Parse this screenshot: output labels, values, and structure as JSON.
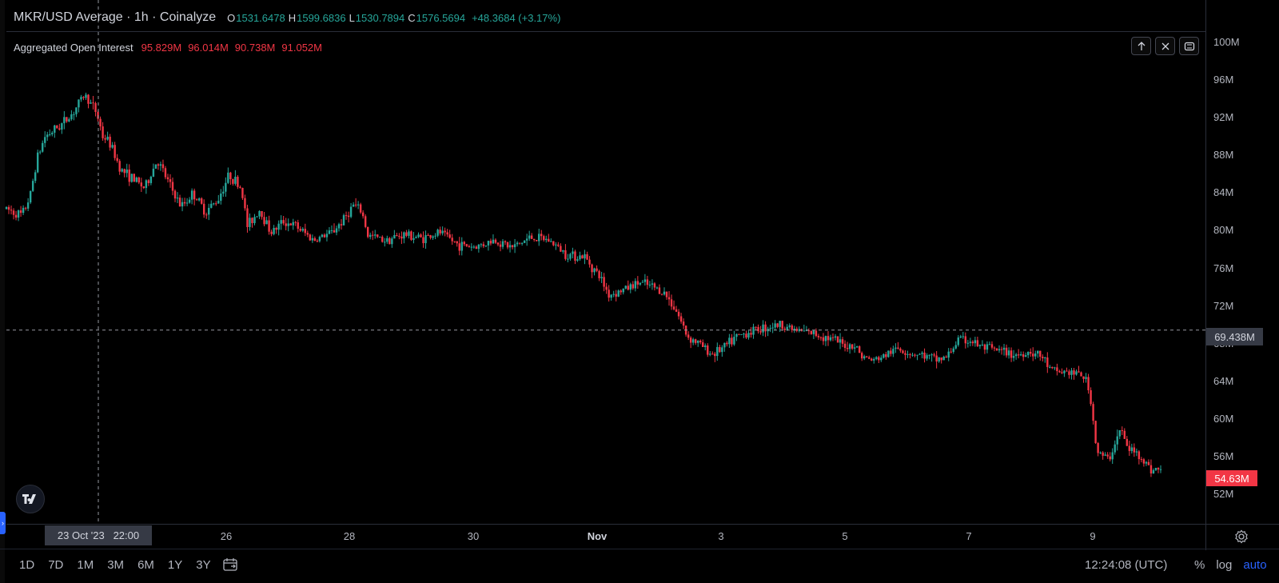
{
  "header": {
    "symbol_title": "MKR/USD Average · 1h · Coinalyze",
    "ohlc": [
      {
        "key": "O",
        "value": "1531.6478"
      },
      {
        "key": "H",
        "value": "1599.6836"
      },
      {
        "key": "L",
        "value": "1530.7894"
      },
      {
        "key": "C",
        "value": "1576.5694"
      }
    ],
    "change": "+48.3684 (+3.17%)"
  },
  "indicator": {
    "name": "Aggregated Open Interest",
    "values": [
      "95.829M",
      "96.014M",
      "90.738M",
      "91.052M"
    ]
  },
  "colors": {
    "up": "#26a69a",
    "down": "#f23645",
    "background": "#000000",
    "accent": "#2962ff"
  },
  "icons": {
    "move_up": "arrow-up-icon",
    "close": "close-icon",
    "maximize": "maximize-icon",
    "settings": "gear-icon",
    "calendar": "calendar-icon",
    "logo": "tradingview-logo"
  },
  "price_axis": [
    "100M",
    "96M",
    "92M",
    "88M",
    "84M",
    "80M",
    "76M",
    "72M",
    "68M",
    "64M",
    "60M",
    "56M",
    "52M"
  ],
  "crosshair": {
    "time": "23 Oct '23   22:00",
    "price": "69.438M"
  },
  "last_price": "54.63M",
  "time_axis": [
    {
      "label": "26",
      "bold": false
    },
    {
      "label": "28",
      "bold": false
    },
    {
      "label": "30",
      "bold": false
    },
    {
      "label": "Nov",
      "bold": true
    },
    {
      "label": "3",
      "bold": false
    },
    {
      "label": "5",
      "bold": false
    },
    {
      "label": "7",
      "bold": false
    },
    {
      "label": "9",
      "bold": false
    }
  ],
  "range_buttons": [
    "1D",
    "7D",
    "1M",
    "3M",
    "6M",
    "1Y",
    "3Y"
  ],
  "clock": "12:24:08 (UTC)",
  "scale_buttons": {
    "percent": "%",
    "log": "log",
    "auto": "auto"
  },
  "chart_data": {
    "type": "candlestick",
    "interval": "1h",
    "ylim": [
      50,
      102
    ],
    "unit": "M",
    "x_ticks": [
      "26",
      "28",
      "30",
      "Nov",
      "3",
      "5",
      "7",
      "9"
    ],
    "grid": false,
    "anchors": [
      {
        "x": 0.0,
        "y": 82.3
      },
      {
        "x": 1.3,
        "y": 81.6
      },
      {
        "x": 2.0,
        "y": 83.8
      },
      {
        "x": 2.5,
        "y": 87.5
      },
      {
        "x": 3.2,
        "y": 90.0
      },
      {
        "x": 4.5,
        "y": 91.2
      },
      {
        "x": 5.5,
        "y": 92.5
      },
      {
        "x": 6.5,
        "y": 94.5
      },
      {
        "x": 7.5,
        "y": 92.5
      },
      {
        "x": 8.0,
        "y": 90.0
      },
      {
        "x": 8.5,
        "y": 89.5
      },
      {
        "x": 9.5,
        "y": 86.5
      },
      {
        "x": 10.5,
        "y": 85.5
      },
      {
        "x": 11.5,
        "y": 84.5
      },
      {
        "x": 12.5,
        "y": 87.5
      },
      {
        "x": 13.5,
        "y": 85.0
      },
      {
        "x": 14.5,
        "y": 82.5
      },
      {
        "x": 15.5,
        "y": 84.0
      },
      {
        "x": 16.5,
        "y": 82.0
      },
      {
        "x": 17.5,
        "y": 83.2
      },
      {
        "x": 18.5,
        "y": 86.0
      },
      {
        "x": 19.5,
        "y": 84.5
      },
      {
        "x": 20.0,
        "y": 80.5
      },
      {
        "x": 21.0,
        "y": 82.2
      },
      {
        "x": 22.0,
        "y": 79.8
      },
      {
        "x": 23.0,
        "y": 81.0
      },
      {
        "x": 24.0,
        "y": 80.5
      },
      {
        "x": 25.5,
        "y": 79.0
      },
      {
        "x": 27.0,
        "y": 79.8
      },
      {
        "x": 28.0,
        "y": 81.2
      },
      {
        "x": 28.8,
        "y": 82.7
      },
      {
        "x": 29.5,
        "y": 82.0
      },
      {
        "x": 30.0,
        "y": 79.5
      },
      {
        "x": 31.5,
        "y": 79.0
      },
      {
        "x": 33.0,
        "y": 79.6
      },
      {
        "x": 34.5,
        "y": 79.2
      },
      {
        "x": 36.0,
        "y": 79.8
      },
      {
        "x": 37.5,
        "y": 78.5
      },
      {
        "x": 39.0,
        "y": 78.3
      },
      {
        "x": 40.5,
        "y": 79.0
      },
      {
        "x": 42.0,
        "y": 78.2
      },
      {
        "x": 43.5,
        "y": 79.3
      },
      {
        "x": 45.0,
        "y": 79.0
      },
      {
        "x": 46.5,
        "y": 77.5
      },
      {
        "x": 48.0,
        "y": 77.2
      },
      {
        "x": 49.3,
        "y": 75.0
      },
      {
        "x": 50.0,
        "y": 73.2
      },
      {
        "x": 51.0,
        "y": 73.6
      },
      {
        "x": 52.5,
        "y": 74.5
      },
      {
        "x": 53.7,
        "y": 74.0
      },
      {
        "x": 54.5,
        "y": 73.5
      },
      {
        "x": 55.5,
        "y": 71.8
      },
      {
        "x": 56.5,
        "y": 68.8
      },
      {
        "x": 57.5,
        "y": 68.0
      },
      {
        "x": 58.5,
        "y": 66.9
      },
      {
        "x": 59.5,
        "y": 67.5
      },
      {
        "x": 60.5,
        "y": 68.6
      },
      {
        "x": 61.5,
        "y": 69.2
      },
      {
        "x": 62.5,
        "y": 69.6
      },
      {
        "x": 63.5,
        "y": 69.9
      },
      {
        "x": 64.5,
        "y": 70.0
      },
      {
        "x": 65.5,
        "y": 69.4
      },
      {
        "x": 66.5,
        "y": 69.2
      },
      {
        "x": 67.5,
        "y": 68.9
      },
      {
        "x": 68.5,
        "y": 68.5
      },
      {
        "x": 69.5,
        "y": 67.8
      },
      {
        "x": 70.5,
        "y": 67.8
      },
      {
        "x": 71.0,
        "y": 66.6
      },
      {
        "x": 72.0,
        "y": 66.2
      },
      {
        "x": 73.0,
        "y": 66.8
      },
      {
        "x": 74.0,
        "y": 67.5
      },
      {
        "x": 75.0,
        "y": 67.0
      },
      {
        "x": 76.0,
        "y": 66.8
      },
      {
        "x": 77.0,
        "y": 66.3
      },
      {
        "x": 78.0,
        "y": 66.5
      },
      {
        "x": 79.0,
        "y": 68.4
      },
      {
        "x": 80.0,
        "y": 68.3
      },
      {
        "x": 81.0,
        "y": 67.6
      },
      {
        "x": 82.0,
        "y": 67.3
      },
      {
        "x": 83.0,
        "y": 67.0
      },
      {
        "x": 84.0,
        "y": 66.8
      },
      {
        "x": 85.0,
        "y": 67.2
      },
      {
        "x": 86.0,
        "y": 66.5
      },
      {
        "x": 86.8,
        "y": 65.0
      },
      {
        "x": 87.8,
        "y": 65.0
      },
      {
        "x": 88.8,
        "y": 64.8
      },
      {
        "x": 89.5,
        "y": 64.5
      },
      {
        "x": 90.0,
        "y": 62.0
      },
      {
        "x": 90.5,
        "y": 56.5
      },
      {
        "x": 91.5,
        "y": 55.6
      },
      {
        "x": 92.0,
        "y": 57.5
      },
      {
        "x": 92.5,
        "y": 59.0
      },
      {
        "x": 93.0,
        "y": 57.0
      },
      {
        "x": 94.0,
        "y": 56.2
      },
      {
        "x": 95.0,
        "y": 54.6
      },
      {
        "x": 95.8,
        "y": 54.63
      }
    ],
    "last_value": 54.63,
    "crosshair_value": 69.438
  }
}
